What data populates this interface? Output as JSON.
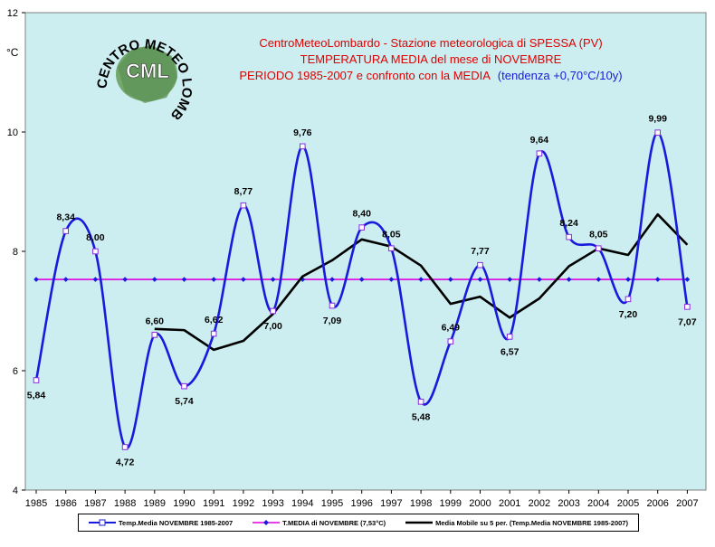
{
  "colors": {
    "plot_bg": "#cdeef0",
    "series_main": "#1a1adc",
    "series_avg": "#e000e0",
    "series_mm": "#000000",
    "title_red": "#e00000",
    "title_blue": "#1a1adc"
  },
  "logo": {
    "arc_text": "CENTRO METEO LOMBARDO",
    "monogram": "CML"
  },
  "chart_data": {
    "type": "line",
    "title_lines": [
      "CentroMeteoLombardo - Stazione meteorologica di SPESSA (PV)",
      "TEMPERATURA MEDIA del mese di NOVEMBRE",
      "PERIODO 1985-2007 e confronto con la MEDIA"
    ],
    "title_trend": "(tendenza +0,70°C/10y)",
    "ylabel": "°C",
    "ylim": [
      4,
      12
    ],
    "yticks": [
      "4",
      "6",
      "8",
      "10",
      "12"
    ],
    "grid": false,
    "legend_position": "bottom",
    "categories": [
      "1985",
      "1986",
      "1987",
      "1988",
      "1989",
      "1990",
      "1991",
      "1992",
      "1993",
      "1994",
      "1995",
      "1996",
      "1997",
      "1998",
      "1999",
      "2000",
      "2001",
      "2002",
      "2003",
      "2004",
      "2005",
      "2006",
      "2007"
    ],
    "series": [
      {
        "name": "Temp.Media NOVEMBRE 1985-2007",
        "values": [
          5.84,
          8.34,
          8.0,
          4.72,
          6.6,
          5.74,
          6.62,
          8.77,
          7.0,
          9.76,
          7.09,
          8.4,
          8.05,
          5.48,
          6.49,
          7.77,
          6.57,
          9.64,
          8.24,
          8.05,
          7.2,
          9.99,
          7.07
        ],
        "labels": [
          "5,84",
          "8,34",
          "8,00",
          "4,72",
          "6,60",
          "5,74",
          "6,62",
          "8,77",
          "7,00",
          "9,76",
          "7,09",
          "8,40",
          "8,05",
          "5,48",
          "6,49",
          "7,77",
          "6,57",
          "9,64",
          "8,24",
          "8,05",
          "7,20",
          "9,99",
          "7,07"
        ],
        "label_pos": [
          "below",
          "above",
          "above",
          "below",
          "above",
          "below",
          "above",
          "above",
          "below",
          "above",
          "below",
          "above",
          "above",
          "below",
          "above",
          "above",
          "below",
          "above",
          "above",
          "above",
          "below",
          "above",
          "below"
        ]
      },
      {
        "name": "T.MEDIA di NOVEMBRE (7,53°C)",
        "values": [
          7.53,
          7.53,
          7.53,
          7.53,
          7.53,
          7.53,
          7.53,
          7.53,
          7.53,
          7.53,
          7.53,
          7.53,
          7.53,
          7.53,
          7.53,
          7.53,
          7.53,
          7.53,
          7.53,
          7.53,
          7.53,
          7.53,
          7.53
        ]
      },
      {
        "name": "Media Mobile su 5 per. (Temp.Media NOVEMBRE 1985-2007)",
        "values": [
          null,
          null,
          null,
          null,
          6.7,
          6.68,
          6.35,
          6.5,
          6.95,
          7.58,
          7.85,
          8.2,
          8.08,
          7.76,
          7.12,
          7.24,
          6.89,
          7.21,
          7.75,
          8.05,
          7.94,
          8.62,
          8.11
        ]
      }
    ]
  }
}
